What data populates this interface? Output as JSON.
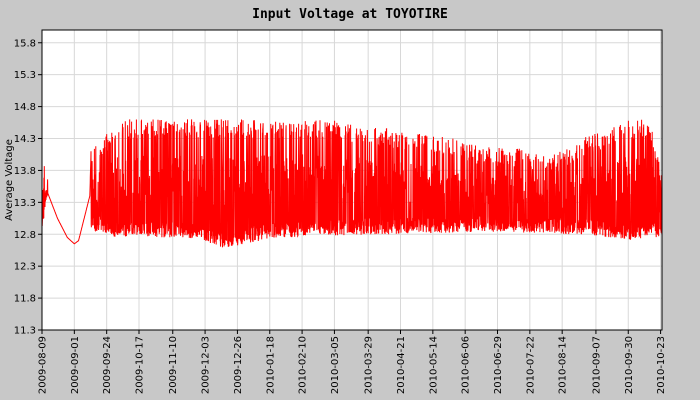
{
  "chart_data": {
    "type": "line",
    "title": "Input Voltage at TOYOTIRE",
    "xlabel": "",
    "ylabel": "Average Voltage",
    "ylim": [
      11.3,
      16.0
    ],
    "yticks": [
      "11.3",
      "11.8",
      "12.3",
      "12.8",
      "13.3",
      "13.8",
      "14.3",
      "14.8",
      "15.3",
      "15.8"
    ],
    "xticks": [
      "2009-08-09",
      "2009-09-01",
      "2009-09-24",
      "2009-10-17",
      "2009-11-10",
      "2009-12-03",
      "2009-12-26",
      "2010-01-18",
      "2010-02-10",
      "2010-03-05",
      "2010-03-29",
      "2010-04-21",
      "2010-05-14",
      "2010-06-06",
      "2010-06-29",
      "2010-07-22",
      "2010-08-14",
      "2010-09-07",
      "2010-09-30",
      "2010-10-23"
    ],
    "xlim": [
      "2009-08-09",
      "2010-10-24"
    ],
    "grid": true,
    "series": [
      {
        "name": "",
        "color": "#ff0000",
        "x": [
          "2009-08-09",
          "2009-08-13",
          "2009-08-20",
          "2009-08-27",
          "2009-09-01",
          "2009-09-04",
          "2009-09-12",
          "2009-09-13",
          "2009-09-20",
          "2009-10-01",
          "2009-10-15",
          "2009-11-01",
          "2009-11-15",
          "2009-12-01",
          "2009-12-15",
          "2010-01-01",
          "2010-01-15",
          "2010-02-01",
          "2010-02-15",
          "2010-03-01",
          "2010-03-15",
          "2010-04-01",
          "2010-04-15",
          "2010-05-01",
          "2010-05-15",
          "2010-06-01",
          "2010-06-15",
          "2010-07-01",
          "2010-07-15",
          "2010-08-01",
          "2010-08-15",
          "2010-09-01",
          "2010-09-15",
          "2010-10-01",
          "2010-10-15",
          "2010-10-24"
        ],
        "y_high": [
          14.25,
          13.45,
          13.05,
          12.75,
          12.65,
          12.7,
          13.4,
          14.2,
          14.25,
          14.6,
          14.6,
          14.6,
          14.6,
          14.6,
          14.6,
          14.6,
          14.6,
          14.6,
          14.6,
          14.6,
          14.55,
          14.5,
          14.45,
          14.4,
          14.35,
          14.3,
          14.2,
          14.15,
          14.15,
          14.05,
          14.1,
          14.35,
          14.45,
          14.6,
          14.6,
          13.75
        ],
        "y_low": [
          12.85,
          13.45,
          13.05,
          12.75,
          12.65,
          12.7,
          13.4,
          12.85,
          12.85,
          12.75,
          12.78,
          12.75,
          12.75,
          12.72,
          12.58,
          12.65,
          12.72,
          12.75,
          12.78,
          12.78,
          12.78,
          12.8,
          12.8,
          12.82,
          12.82,
          12.82,
          12.84,
          12.84,
          12.82,
          12.82,
          12.8,
          12.8,
          12.75,
          12.72,
          12.75,
          12.75
        ]
      }
    ]
  }
}
